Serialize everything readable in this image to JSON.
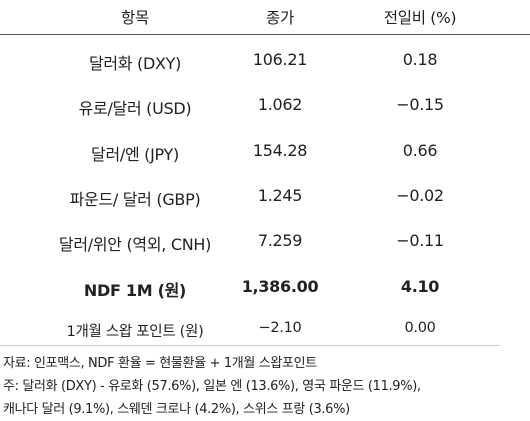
{
  "header": {
    "item": "항목",
    "close": "종가",
    "change": "전일비 (%)"
  },
  "rows": [
    {
      "item": "달러화 (DXY)",
      "close": "106.21",
      "change": "0.18"
    },
    {
      "item": "유로/달러 (USD)",
      "close": "1.062",
      "change": "−0.15"
    },
    {
      "item": "달러/엔 (JPY)",
      "close": "154.28",
      "change": "0.66"
    },
    {
      "item": "파운드/ 달러 (GBP)",
      "close": "1.245",
      "change": "−0.02"
    },
    {
      "item": "달러/위안 (역외, CNH)",
      "close": "7.259",
      "change": "−0.11"
    },
    {
      "item": "NDF 1M (원)",
      "close": "1,386.00",
      "change": "4.10"
    },
    {
      "item": "1개월 스왑 포인트 (원)",
      "close": "−2.10",
      "change": "0.00"
    }
  ],
  "notes": {
    "source": "자료: 인포맥스, NDF 환율 = 현물환율 + 1개월 스왑포인트",
    "note_line1": "주: 달러화 (DXY) - 유로화 (57.6%), 일본 엔 (13.6%), 영국 파운드 (11.9%),",
    "note_line2": "캐나다 달러 (9.1%), 스웨덴 크로나 (4.2%), 스위스 프랑 (3.6%)"
  }
}
